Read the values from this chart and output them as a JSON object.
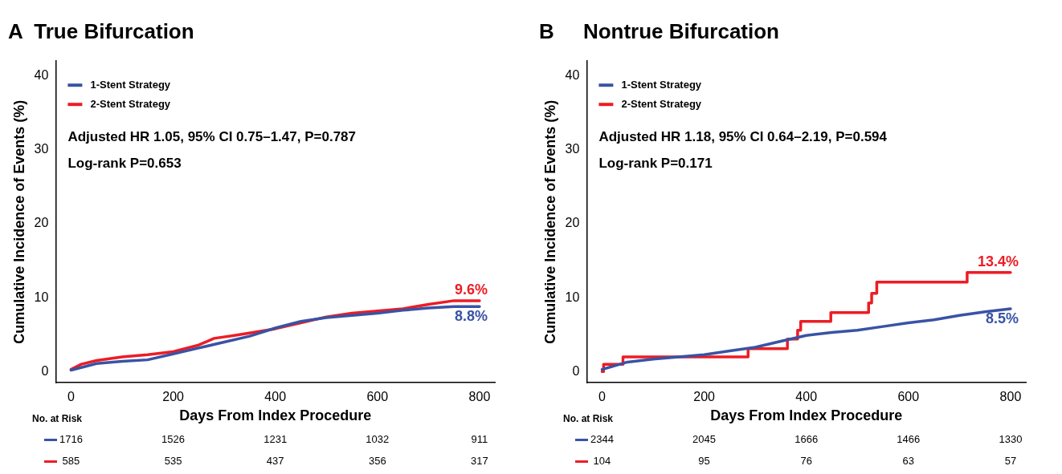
{
  "chart_data": [
    {
      "type": "line",
      "title": "A  True Bifurcation",
      "xlabel": "Days From Index Procedure",
      "ylabel": "Cumulative Incidence of Events (%)",
      "xlim": [
        -30,
        830
      ],
      "xticks": [
        0,
        200,
        400,
        600,
        800
      ],
      "ylim": [
        -1.5,
        42
      ],
      "yticks": [
        0,
        10,
        20,
        30,
        40
      ],
      "grid": false,
      "legend": "top left",
      "marker": "none",
      "line_style": "solid",
      "series": [
        {
          "name": "1-Stent Strategy",
          "color": "#3953a4",
          "x": [
            0,
            50,
            100,
            150,
            200,
            250,
            300,
            350,
            400,
            450,
            500,
            550,
            600,
            650,
            700,
            750,
            800
          ],
          "values": [
            0.2,
            1.1,
            1.4,
            1.6,
            2.4,
            3.2,
            4.0,
            4.8,
            5.9,
            6.8,
            7.3,
            7.6,
            7.9,
            8.3,
            8.6,
            8.8,
            8.8
          ],
          "value_labels": [
            null,
            null,
            null,
            null,
            null,
            null,
            null,
            null,
            null,
            null,
            null,
            null,
            null,
            null,
            null,
            null,
            "8.8%"
          ]
        },
        {
          "name": "2-Stent Strategy",
          "color": "#ed1c24",
          "x": [
            0,
            20,
            50,
            100,
            150,
            200,
            250,
            280,
            320,
            400,
            450,
            500,
            550,
            600,
            650,
            700,
            750,
            800
          ],
          "values": [
            0.3,
            1.0,
            1.5,
            2.0,
            2.3,
            2.7,
            3.6,
            4.5,
            4.9,
            5.8,
            6.6,
            7.4,
            7.9,
            8.2,
            8.5,
            9.1,
            9.6,
            9.6
          ],
          "value_labels": [
            null,
            null,
            null,
            null,
            null,
            null,
            null,
            null,
            null,
            null,
            null,
            null,
            null,
            null,
            null,
            null,
            null,
            "9.6%"
          ]
        }
      ],
      "annotations": [
        "Adjusted HR 1.05, 95% CI 0.75–1.47, P=0.787",
        "Log-rank P=0.653",
        "No. at Risk",
        "1716",
        "1526",
        "1231",
        "1032",
        "911",
        "585",
        "535",
        "437",
        "356",
        "317"
      ]
    },
    {
      "type": "step",
      "title": "B     Nontrue Bifurcation",
      "xlabel": "Days From Index Procedure",
      "ylabel": "Cumulative Incidence of Events (%)",
      "xlim": [
        -30,
        830
      ],
      "xticks": [
        0,
        200,
        400,
        600,
        800
      ],
      "ylim": [
        -1.5,
        42
      ],
      "yticks": [
        0,
        10,
        20,
        30,
        40
      ],
      "grid": false,
      "legend": "top left",
      "marker": "none",
      "line_style": "solid",
      "series": [
        {
          "name": "1-Stent Strategy",
          "color": "#3953a4",
          "type": "line",
          "x": [
            0,
            50,
            100,
            150,
            200,
            250,
            300,
            350,
            400,
            450,
            500,
            550,
            600,
            650,
            700,
            750,
            800
          ],
          "values": [
            0.3,
            1.3,
            1.7,
            2.0,
            2.3,
            2.8,
            3.3,
            4.1,
            4.9,
            5.3,
            5.6,
            6.1,
            6.6,
            7.0,
            7.6,
            8.1,
            8.5
          ],
          "value_labels": [
            null,
            null,
            null,
            null,
            null,
            null,
            null,
            null,
            null,
            null,
            null,
            null,
            null,
            null,
            null,
            null,
            "8.5%"
          ]
        },
        {
          "name": "2-Stent Strategy",
          "color": "#ed1c24",
          "x": [
            0,
            3,
            41,
            286,
            363,
            383,
            389,
            448,
            522,
            528,
            538,
            715,
            800
          ],
          "values": [
            0,
            1.0,
            2.0,
            3.1,
            4.4,
            5.6,
            6.8,
            8.0,
            9.3,
            10.6,
            12.1,
            13.4,
            13.4
          ],
          "value_labels": [
            null,
            null,
            null,
            null,
            null,
            null,
            null,
            null,
            null,
            null,
            null,
            null,
            "13.4%"
          ]
        }
      ],
      "annotations": [
        "Adjusted HR 1.18, 95% CI 0.64–2.19, P=0.594",
        "Log-rank P=0.171",
        "No. at Risk",
        "2344",
        "2045",
        "1666",
        "1466",
        "1330",
        "104",
        "95",
        "76",
        "63",
        "57"
      ]
    }
  ]
}
